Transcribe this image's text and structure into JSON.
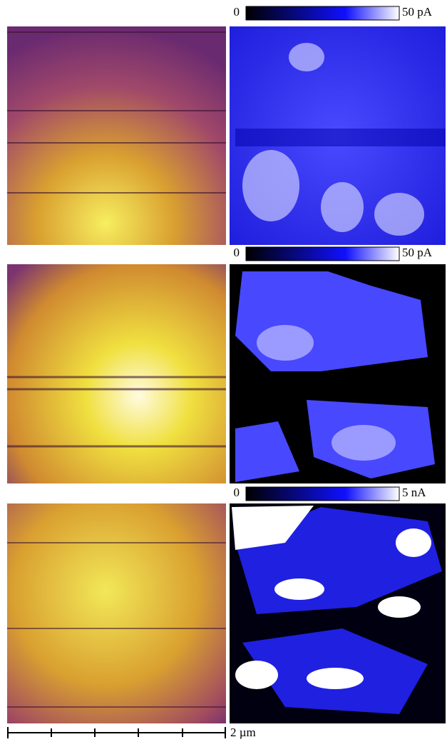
{
  "panels": [
    {
      "colorbar": {
        "min": "0",
        "max": "50 pA"
      }
    },
    {
      "colorbar": {
        "min": "0",
        "max": "50 pA"
      }
    },
    {
      "colorbar": {
        "min": "0",
        "max": "5 nA"
      }
    }
  ],
  "scale_bar": {
    "label": "2 µm"
  }
}
